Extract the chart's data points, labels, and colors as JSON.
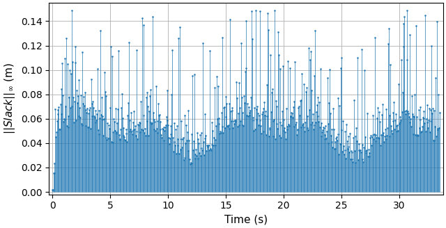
{
  "xlabel": "Time (s)",
  "ylabel": "$||Slack||_\\infty$ (m)",
  "xlim": [
    -0.3,
    33.8
  ],
  "ylim": [
    -0.002,
    0.155
  ],
  "yticks": [
    0.0,
    0.02,
    0.04,
    0.06,
    0.08,
    0.1,
    0.12,
    0.14
  ],
  "xticks": [
    0,
    5,
    10,
    15,
    20,
    25,
    30
  ],
  "line_color": "#1f77b4",
  "seed": 12345,
  "n_points": 670,
  "duration": 33.5
}
